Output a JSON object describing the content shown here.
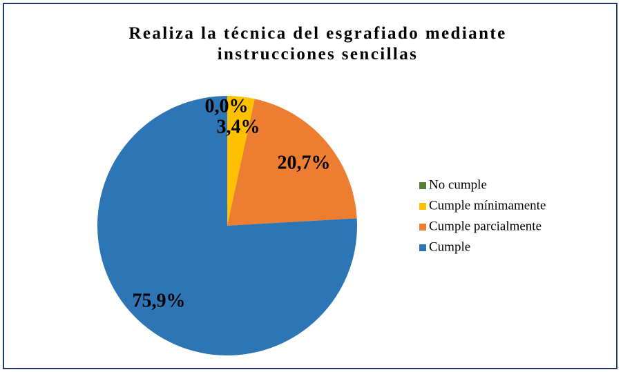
{
  "chart_data": {
    "type": "pie",
    "title": "Realiza la técnica del esgrafiado mediante instrucciones sencillas",
    "categories": [
      "No cumple",
      "Cumple mínimamente",
      "Cumple parcialmente",
      "Cumple"
    ],
    "values": [
      0.0,
      3.4,
      20.7,
      75.9
    ],
    "value_labels": [
      "0,0%",
      "3,4%",
      "20,7%",
      "75,9%"
    ],
    "colors": [
      "#548235",
      "#ffc000",
      "#ed7d31",
      "#2e75b6"
    ],
    "legend": "right"
  }
}
